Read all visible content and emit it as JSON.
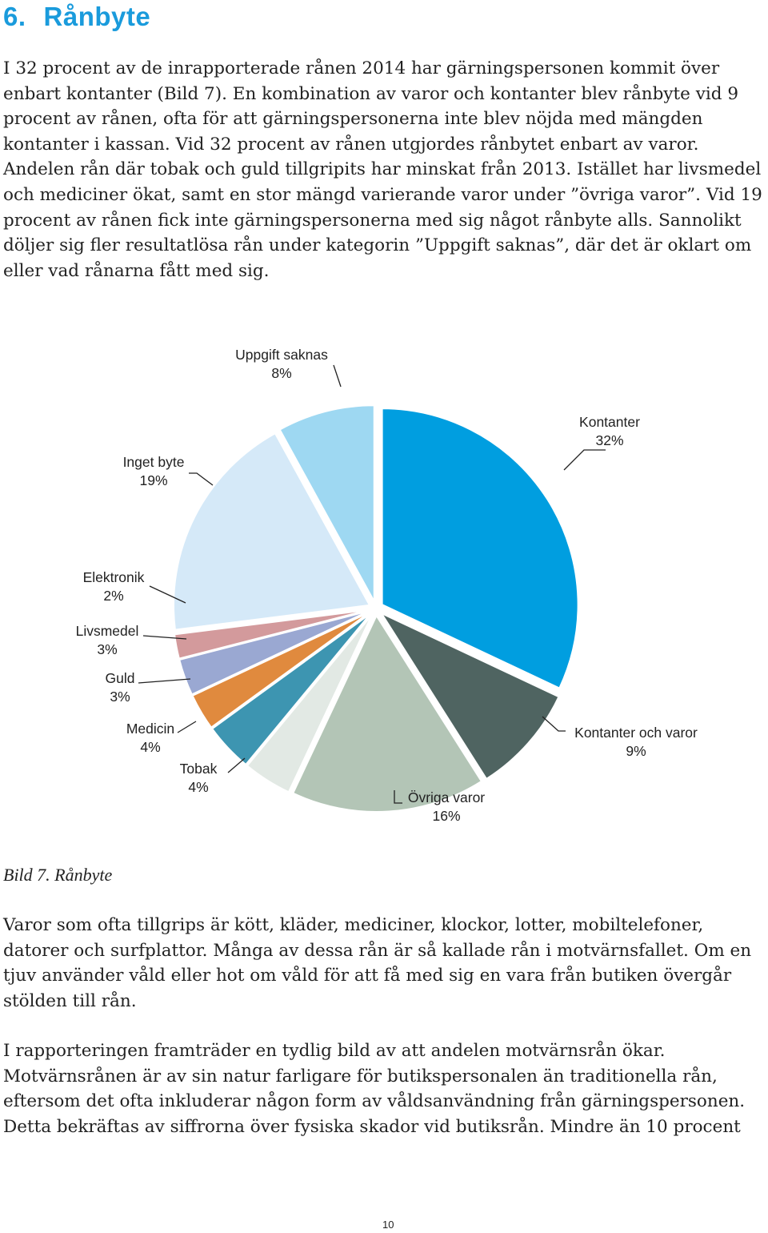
{
  "heading": {
    "number": "6.",
    "title": "Rånbyte"
  },
  "paragraph1": "I 32 procent av de inrapporterade rånen 2014 har gärningspersonen kommit över enbart kontanter (Bild 7). En kombination av varor och kontanter blev rånbyte vid 9 procent av rånen, ofta för att gärningspersonerna inte blev nöjda med mängden kontanter i kassan. Vid 32 procent av rånen utgjordes rånbytet enbart av varor. Andelen rån där tobak och guld tillgripits har minskat från 2013. Istället har livsmedel och mediciner ökat, samt en stor mängd varierande varor under ”övriga varor”. Vid 19 procent av rånen fick inte gärningspersonerna med sig något rånbyte alls. Sannolikt döljer sig fler resultatlösa rån under kategorin ”Uppgift saknas”, där det är oklart om eller vad rånarna fått med sig.",
  "caption": "Bild 7. Rånbyte",
  "paragraph2": "Varor som ofta tillgrips är kött, kläder, mediciner, klockor, lotter, mobiltelefoner, datorer och surfplattor. Många av dessa rån är så kallade rån i motvärnsfallet. Om en tjuv använder våld eller hot om våld för att få med sig en vara från butiken övergår stölden till rån.",
  "paragraph3": "I rapporteringen framträder en tydlig bild av att andelen motvärnsrån ökar. Motvärnsrånen är av sin natur farligare för butikspersonalen än traditionella rån, eftersom det ofta inkluderar någon form av våldsanvändning från gärningspersonen. Detta bekräftas av siffrorna över fysiska skador vid butiksrån. Mindre än 10 procent",
  "page_number": "10",
  "chart_data": {
    "type": "pie",
    "title": "",
    "slices": [
      {
        "label": "Kontanter",
        "value": 32,
        "value_label": "32%",
        "color": "#009ee0"
      },
      {
        "label": "Kontanter och varor",
        "value": 9,
        "value_label": "9%",
        "color": "#4f6461"
      },
      {
        "label": "Övriga varor",
        "value": 16,
        "value_label": "16%",
        "color": "#b3c5b6"
      },
      {
        "label": "Tobak",
        "value": 4,
        "value_label": "4%",
        "color": "#e2e9e4"
      },
      {
        "label": "Medicin",
        "value": 4,
        "value_label": "4%",
        "color": "#3d95b1"
      },
      {
        "label": "Guld",
        "value": 3,
        "value_label": "3%",
        "color": "#e08a3e"
      },
      {
        "label": "Livsmedel",
        "value": 3,
        "value_label": "3%",
        "color": "#9aa8d2"
      },
      {
        "label": "Elektronik",
        "value": 2,
        "value_label": "2%",
        "color": "#d39a9c"
      },
      {
        "label": "Inget byte",
        "value": 19,
        "value_label": "19%",
        "color": "#d5e9f8"
      },
      {
        "label": "Uppgift saknas",
        "value": 8,
        "value_label": "8%",
        "color": "#9ed8f2"
      }
    ]
  }
}
